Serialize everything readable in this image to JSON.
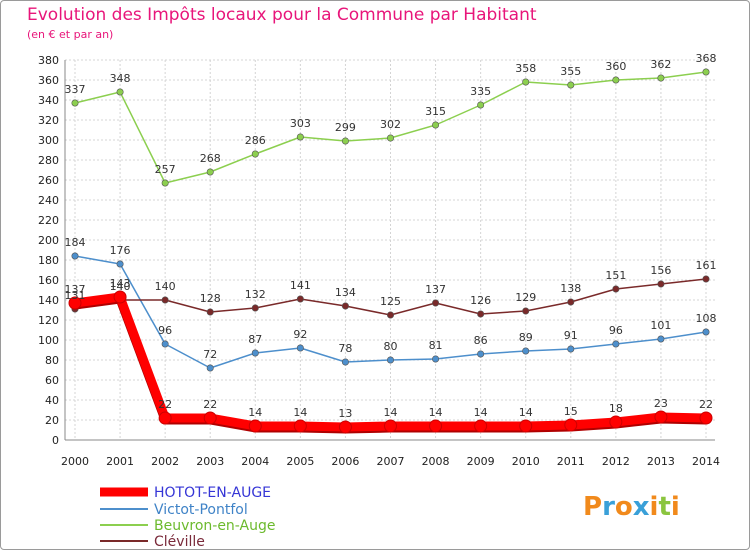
{
  "title": "Evolution des Impôts locaux pour la Commune par Habitant",
  "subtitle": "(en € et par an)",
  "logo": {
    "text": "Proxiti",
    "colors": [
      "#f18a1c",
      "#3aa0d8",
      "#f18a1c",
      "#3aa0d8",
      "#f18a1c",
      "#8bc53f",
      "#f18a1c"
    ]
  },
  "chart_data": {
    "type": "line",
    "title": "Evolution des Impôts locaux pour la Commune par Habitant",
    "subtitle": "(en € et par an)",
    "x": [
      "2000",
      "2001",
      "2002",
      "2003",
      "2004",
      "2005",
      "2006",
      "2007",
      "2008",
      "2009",
      "2010",
      "2011",
      "2012",
      "2013",
      "2014"
    ],
    "ylim": [
      0,
      380
    ],
    "yticks": [
      0,
      20,
      40,
      60,
      80,
      100,
      120,
      140,
      160,
      180,
      200,
      220,
      240,
      260,
      280,
      300,
      320,
      340,
      360,
      380
    ],
    "grid": true,
    "legend_position": "bottom-left",
    "series": [
      {
        "name": "HOTOT-EN-AUGE",
        "color": "#ff0000",
        "legend_color": "#3535d6",
        "values": [
          137,
          143,
          22,
          22,
          14,
          14,
          13,
          14,
          14,
          14,
          14,
          15,
          18,
          23,
          22
        ]
      },
      {
        "name": "Victot-Pontfol",
        "color": "#4d8fcc",
        "legend_color": "#3f83c7",
        "values": [
          184,
          176,
          96,
          72,
          87,
          92,
          78,
          80,
          81,
          86,
          89,
          91,
          96,
          101,
          108
        ]
      },
      {
        "name": "Beuvron-en-Auge",
        "color": "#8ccf4f",
        "legend_color": "#6cba2d",
        "values": [
          337,
          348,
          257,
          268,
          286,
          303,
          299,
          302,
          315,
          335,
          358,
          355,
          360,
          362,
          368
        ]
      },
      {
        "name": "Cléville",
        "color": "#7a2a2a",
        "legend_color": "#7a2a3a",
        "values": [
          131,
          140,
          140,
          128,
          132,
          141,
          134,
          125,
          137,
          126,
          129,
          138,
          151,
          156,
          161
        ]
      }
    ]
  }
}
